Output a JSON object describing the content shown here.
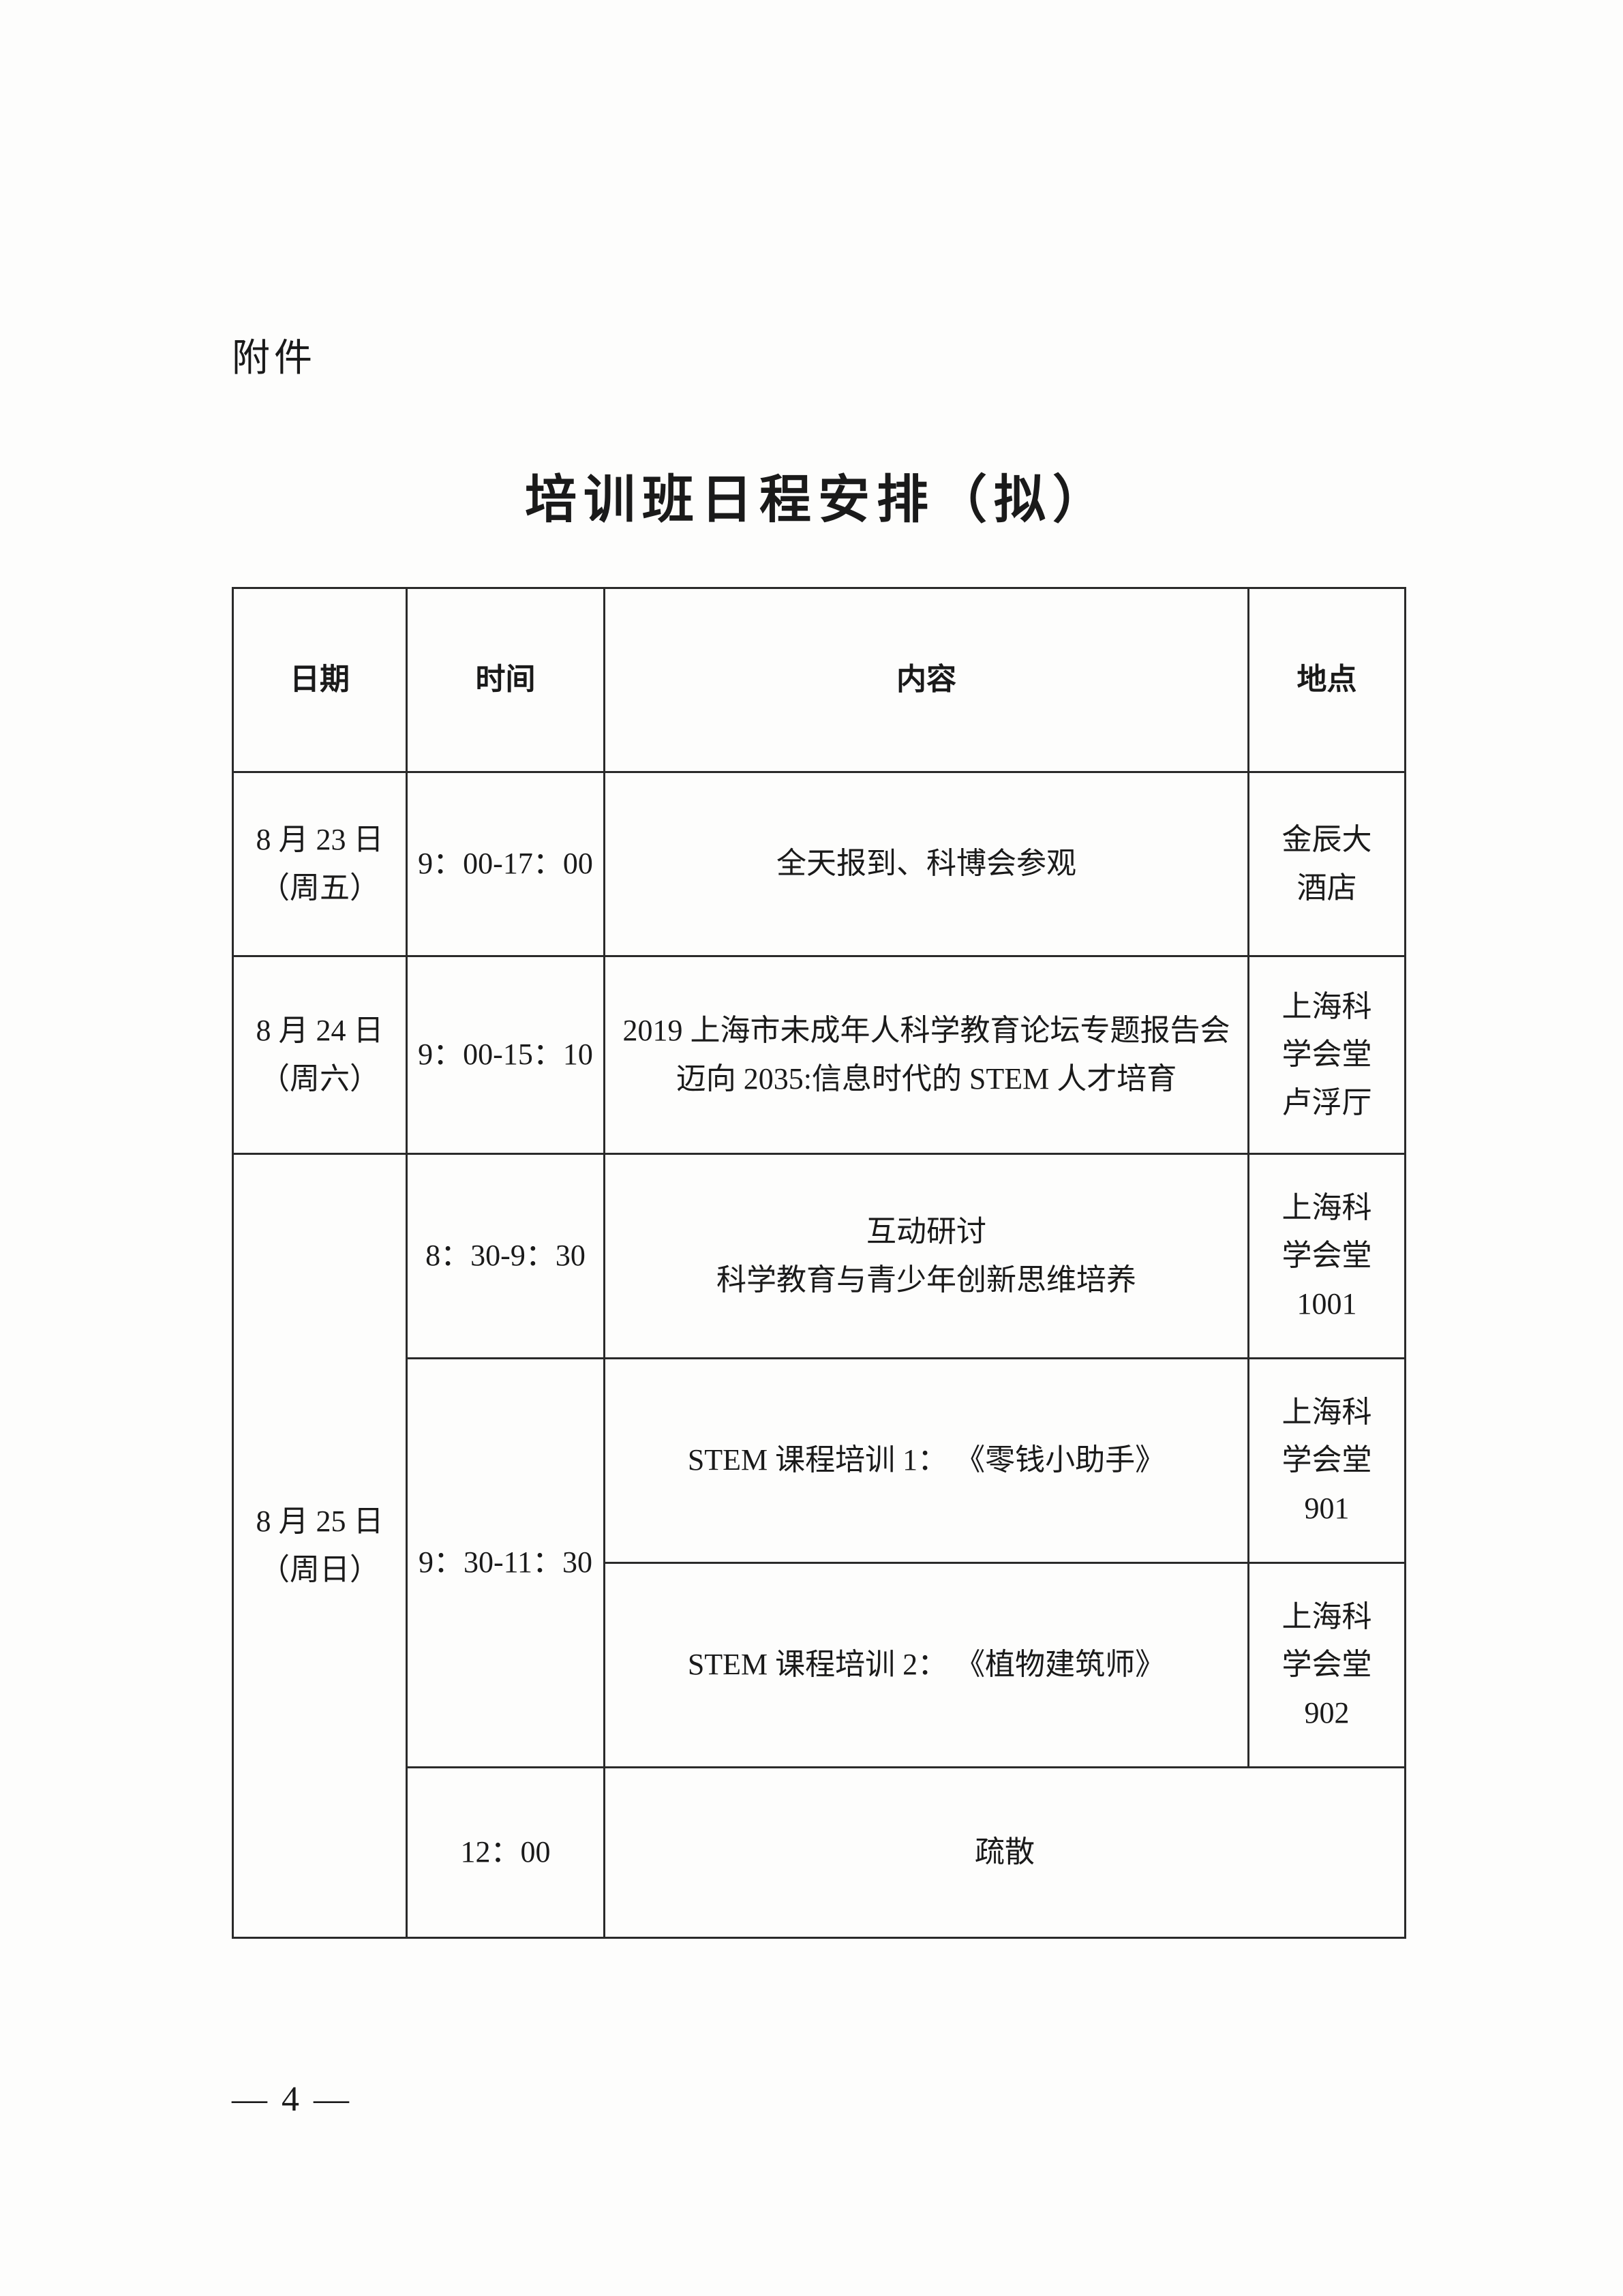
{
  "attachment_label": "附件",
  "title": "培训班日程安排（拟）",
  "table": {
    "headers": {
      "date": "日期",
      "time": "时间",
      "content": "内容",
      "location": "地点"
    },
    "rows": [
      {
        "date": "8 月 23 日\n（周五）",
        "time": "9：00-17：00",
        "content": "全天报到、科博会参观",
        "location": "金辰大\n酒店"
      },
      {
        "date": "8 月 24 日\n（周六）",
        "time": "9：00-15：10",
        "content": "2019 上海市未成年人科学教育论坛专题报告会\n迈向 2035:信息时代的 STEM 人才培育",
        "location": "上海科\n学会堂\n卢浮厅"
      },
      {
        "date": "8 月 25 日\n（周日）",
        "sessions": [
          {
            "time": "8：30-9：30",
            "content": "互动研讨\n科学教育与青少年创新思维培养",
            "location": "上海科\n学会堂\n1001"
          },
          {
            "time": "9：30-11：30",
            "parallel": [
              {
                "content": "STEM 课程培训 1：  《零钱小助手》",
                "location": "上海科\n学会堂\n901"
              },
              {
                "content": "STEM 课程培训 2：  《植物建筑师》",
                "location": "上海科\n学会堂\n902"
              }
            ]
          },
          {
            "time": "12：00",
            "content": "疏散",
            "location_merged": true
          }
        ]
      }
    ],
    "border_color": "#2a2a2a",
    "background_color": "#fdfdfc",
    "header_fontsize": 44,
    "cell_fontsize": 44,
    "text_color": "#1a1a1a"
  },
  "page_number": "— 4 —"
}
